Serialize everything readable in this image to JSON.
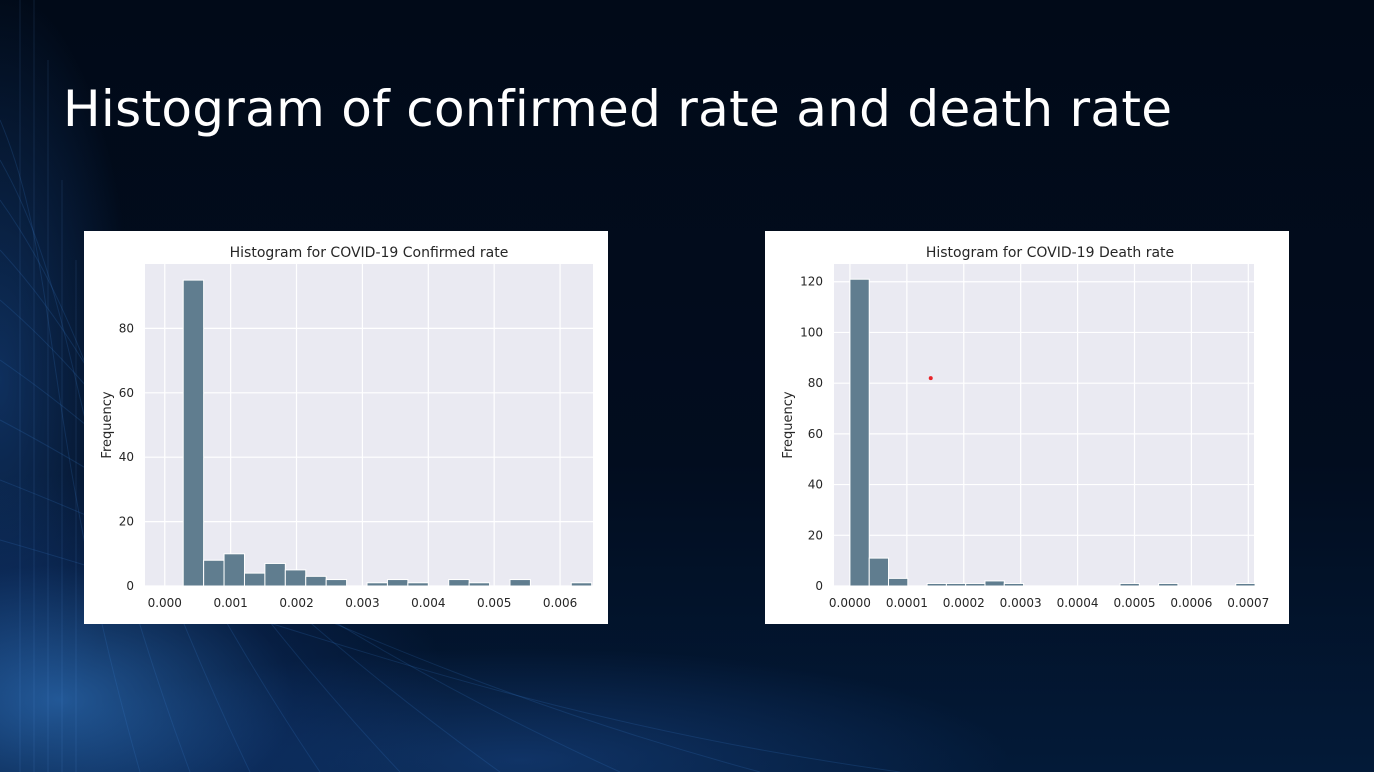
{
  "slide": {
    "title": "Histogram of confirmed rate and death rate"
  },
  "colors": {
    "bar": "#607d8f",
    "plot_bg": "#eaeaf2",
    "grid": "#ffffff",
    "marker": "#e8242a"
  },
  "chart_data": [
    {
      "type": "bar",
      "title": "Histogram for COVID-19 Confirmed rate",
      "xlabel": "",
      "ylabel": "Frequency",
      "xlim": [
        -0.0003,
        0.0065
      ],
      "ylim": [
        0,
        100
      ],
      "grid": true,
      "xticks": [
        0.0,
        0.001,
        0.002,
        0.003,
        0.004,
        0.005,
        0.006
      ],
      "xtick_labels": [
        "0.000",
        "0.001",
        "0.002",
        "0.003",
        "0.004",
        "0.005",
        "0.006"
      ],
      "yticks": [
        0,
        20,
        40,
        60,
        80
      ],
      "ytick_labels": [
        "0",
        "20",
        "40",
        "60",
        "80"
      ],
      "bin_start": 0.00028,
      "bin_width": 0.00031,
      "values": [
        95,
        8,
        10,
        4,
        7,
        5,
        3,
        2,
        0,
        1,
        2,
        1,
        0,
        2,
        1,
        0,
        2,
        0,
        0,
        1
      ]
    },
    {
      "type": "bar",
      "title": "Histogram for COVID-19 Death rate",
      "xlabel": "",
      "ylabel": "Frequency",
      "xlim": [
        -2.8e-05,
        0.00071
      ],
      "ylim": [
        0,
        127
      ],
      "grid": true,
      "xticks": [
        0.0,
        0.0001,
        0.0002,
        0.0003,
        0.0004,
        0.0005,
        0.0006,
        0.0007
      ],
      "xtick_labels": [
        "0.0000",
        "0.0001",
        "0.0002",
        "0.0003",
        "0.0004",
        "0.0005",
        "0.0006",
        "0.0007"
      ],
      "yticks": [
        0,
        20,
        40,
        60,
        80,
        100,
        120
      ],
      "ytick_labels": [
        "0",
        "20",
        "40",
        "60",
        "80",
        "100",
        "120"
      ],
      "bin_start": 0.0,
      "bin_width": 3.39e-05,
      "values": [
        121,
        11,
        3,
        0,
        1,
        1,
        1,
        2,
        1,
        0,
        0,
        0,
        0,
        0,
        1,
        0,
        1,
        0,
        0,
        0,
        1
      ],
      "annotations": [
        {
          "type": "point",
          "x": 0.000142,
          "y": 82
        }
      ]
    }
  ]
}
